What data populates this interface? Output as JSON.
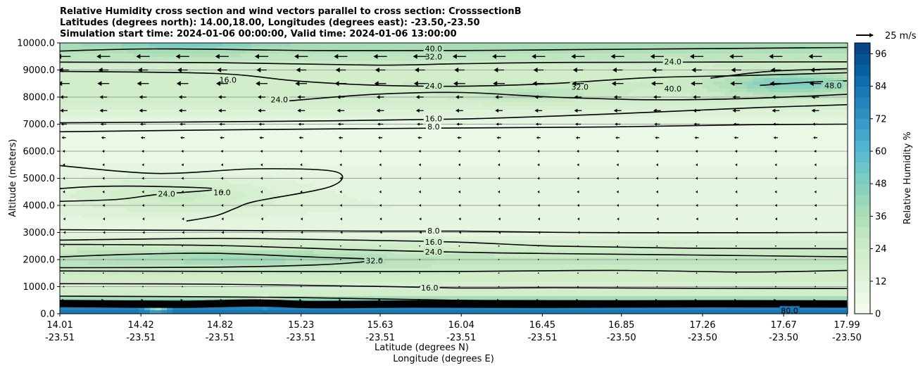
{
  "chart_data": {
    "type": "contour cross-section with filled contours, line contours and wind vectors",
    "title_lines": [
      "Relative Humidity cross section and wind vectors parallel to cross section: CrosssectionB",
      "Latitudes (degrees north): 14.00,18.00, Longitudes (degrees east): -23.50,-23.50",
      "Simulation start time: 2024-01-06 00:00:00, Valid time: 2024-01-06 13:00:00"
    ],
    "ylabel": "Altitude (meters)",
    "xlabel_lat": "Latitude (degrees N)",
    "xlabel_lon": "Longitude (degrees E)",
    "ylim": [
      0,
      10000
    ],
    "yticks": [
      0,
      1000,
      2000,
      3000,
      4000,
      5000,
      6000,
      7000,
      8000,
      9000,
      10000
    ],
    "ytick_labels": [
      "0.0",
      "1000.0",
      "2000.0",
      "3000.0",
      "4000.0",
      "5000.0",
      "6000.0",
      "7000.0",
      "8000.0",
      "9000.0",
      "10000.0"
    ],
    "xlim": [
      14.01,
      17.99
    ],
    "xticks": [
      14.01,
      14.42,
      14.82,
      15.23,
      15.63,
      16.04,
      16.45,
      16.85,
      17.26,
      17.67,
      17.99
    ],
    "xtick_lat_labels": [
      "14.01",
      "14.42",
      "14.82",
      "15.23",
      "15.63",
      "16.04",
      "16.45",
      "16.85",
      "17.26",
      "17.67",
      "17.99"
    ],
    "xtick_lon_labels": [
      "-23.51",
      "-23.51",
      "-23.51",
      "-23.51",
      "-23.51",
      "-23.51",
      "-23.51",
      "-23.50",
      "-23.50",
      "-23.50",
      "-23.50"
    ],
    "grid": "horizontal lines at y ticks",
    "colorbar": {
      "label": "Relative Humidity %",
      "range": [
        0,
        100
      ],
      "ticks": [
        0,
        12,
        24,
        36,
        48,
        60,
        72,
        84,
        96
      ],
      "tick_labels": [
        "0",
        "12",
        "24",
        "36",
        "48",
        "60",
        "72",
        "84",
        "96"
      ],
      "colormap": "GnBu",
      "levels": 25
    },
    "quiver_key": {
      "label": "25 m/s",
      "speed": 25
    },
    "rh_field_profile": [
      {
        "alt": 0,
        "rh": 82
      },
      {
        "alt": 200,
        "rh": 78
      },
      {
        "alt": 400,
        "rh": 62
      },
      {
        "alt": 700,
        "rh": 22
      },
      {
        "alt": 1000,
        "rh": 18
      },
      {
        "alt": 1500,
        "rh": 24
      },
      {
        "alt": 2000,
        "rh": 30
      },
      {
        "alt": 2500,
        "rh": 20
      },
      {
        "alt": 3000,
        "rh": 10
      },
      {
        "alt": 4000,
        "rh": 12
      },
      {
        "alt": 5000,
        "rh": 10
      },
      {
        "alt": 6000,
        "rh": 6
      },
      {
        "alt": 7000,
        "rh": 8
      },
      {
        "alt": 7500,
        "rh": 16
      },
      {
        "alt": 8000,
        "rh": 22
      },
      {
        "alt": 8500,
        "rh": 24
      },
      {
        "alt": 9000,
        "rh": 20
      },
      {
        "alt": 9500,
        "rh": 30
      },
      {
        "alt": 10000,
        "rh": 40
      }
    ],
    "rh_anomalies": [
      {
        "lat": 14.6,
        "alt": 4400,
        "dlat": 0.5,
        "dalt": 600,
        "rh": 14
      },
      {
        "lat": 14.9,
        "alt": 2100,
        "dlat": 0.8,
        "dalt": 350,
        "rh": 12
      },
      {
        "lat": 17.7,
        "alt": 8500,
        "dlat": 0.35,
        "dalt": 450,
        "rh": 26
      },
      {
        "lat": 16.4,
        "alt": 8100,
        "dlat": 0.35,
        "dalt": 300,
        "rh": 10
      },
      {
        "lat": 14.65,
        "alt": 9950,
        "dlat": 0.35,
        "dalt": 300,
        "rh": 12
      },
      {
        "lat": 15.05,
        "alt": 450,
        "dlat": 0.06,
        "dalt": 150,
        "rh": -45
      },
      {
        "lat": 14.5,
        "alt": 200,
        "dlat": 0.05,
        "dalt": 120,
        "rh": -40
      }
    ],
    "contour_lines": [
      {
        "label": "8.0",
        "points": [
          [
            14.01,
            3100
          ],
          [
            15.0,
            3070
          ],
          [
            15.6,
            3050
          ],
          [
            16.04,
            3050
          ],
          [
            16.6,
            3000
          ],
          [
            17.2,
            2990
          ],
          [
            17.99,
            3000
          ]
        ]
      },
      {
        "label": "16.0",
        "points": [
          [
            14.01,
            2720
          ],
          [
            14.8,
            2780
          ],
          [
            15.5,
            2720
          ],
          [
            16.04,
            2640
          ],
          [
            16.5,
            2500
          ],
          [
            17.2,
            2420
          ],
          [
            17.99,
            2400
          ]
        ]
      },
      {
        "label": "24.0",
        "points": [
          [
            14.01,
            2560
          ],
          [
            14.8,
            2520
          ],
          [
            15.5,
            2360
          ],
          [
            16.04,
            2270
          ],
          [
            16.5,
            2220
          ],
          [
            17.2,
            2170
          ],
          [
            17.99,
            2100
          ]
        ]
      },
      {
        "label": "32.0",
        "points": [
          [
            14.01,
            1700
          ],
          [
            14.8,
            1720
          ],
          [
            15.3,
            1800
          ],
          [
            15.55,
            1920
          ],
          [
            15.6,
            2010
          ],
          [
            15.3,
            2090
          ],
          [
            14.8,
            2230
          ],
          [
            14.4,
            2200
          ],
          [
            14.01,
            2100
          ]
        ]
      },
      {
        "label": "24.0",
        "points": [
          [
            14.01,
            1580
          ],
          [
            15.0,
            1560
          ],
          [
            16.04,
            1560
          ],
          [
            16.8,
            1600
          ],
          [
            17.5,
            1540
          ],
          [
            17.99,
            1600
          ]
        ]
      },
      {
        "label": "16.0",
        "points": [
          [
            14.01,
            1110
          ],
          [
            14.8,
            1090
          ],
          [
            15.6,
            1010
          ],
          [
            16.04,
            950
          ],
          [
            16.5,
            960
          ],
          [
            17.2,
            940
          ],
          [
            17.99,
            930
          ]
        ]
      },
      {
        "label": "8.0",
        "points": [
          [
            14.01,
            650
          ],
          [
            14.6,
            630
          ],
          [
            15.2,
            600
          ],
          [
            16.0,
            500
          ],
          [
            16.5,
            480
          ],
          [
            17.99,
            470
          ]
        ]
      },
      {
        "label": "8.0",
        "points": [
          [
            14.01,
            6720
          ],
          [
            15.0,
            6800
          ],
          [
            16.04,
            6860
          ],
          [
            16.8,
            6900
          ],
          [
            17.5,
            6980
          ],
          [
            17.99,
            7000
          ]
        ]
      },
      {
        "label": "16.0",
        "points": [
          [
            14.01,
            7050
          ],
          [
            15.0,
            7100
          ],
          [
            16.04,
            7190
          ],
          [
            16.8,
            7380
          ],
          [
            17.5,
            7600
          ],
          [
            17.99,
            7720
          ]
        ]
      },
      {
        "label": "24.0",
        "points": [
          [
            14.01,
            8950
          ],
          [
            14.8,
            8870
          ],
          [
            15.2,
            8600
          ],
          [
            15.6,
            8440
          ],
          [
            16.04,
            8400
          ],
          [
            16.5,
            8500
          ],
          [
            17.0,
            8720
          ],
          [
            17.5,
            8800
          ],
          [
            17.99,
            8900
          ]
        ]
      },
      {
        "label": "32.0",
        "points": [
          [
            14.01,
            9290
          ],
          [
            14.8,
            9270
          ],
          [
            15.6,
            9180
          ],
          [
            16.04,
            9230
          ],
          [
            16.6,
            9280
          ],
          [
            17.99,
            9300
          ]
        ]
      },
      {
        "label": "40.0",
        "points": [
          [
            14.01,
            9700
          ],
          [
            14.5,
            9780
          ],
          [
            15.3,
            9720
          ],
          [
            16.04,
            9720
          ],
          [
            16.6,
            9750
          ],
          [
            17.99,
            9830
          ]
        ]
      },
      {
        "label": "24.0",
        "points": [
          [
            14.01,
            4150
          ],
          [
            14.3,
            4220
          ],
          [
            14.5,
            4400
          ],
          [
            14.8,
            4600
          ],
          [
            14.5,
            4700
          ],
          [
            14.2,
            4700
          ],
          [
            14.01,
            4620
          ]
        ]
      },
      {
        "label": "16.0",
        "points": [
          [
            14.01,
            5470
          ],
          [
            14.5,
            5180
          ],
          [
            15.0,
            5350
          ],
          [
            15.4,
            5250
          ],
          [
            15.38,
            4700
          ],
          [
            15.0,
            4150
          ],
          [
            14.9,
            3900
          ],
          [
            14.8,
            3620
          ],
          [
            14.65,
            3420
          ]
        ]
      },
      {
        "label": "16.0",
        "points": [
          [
            15.15,
            7850
          ],
          [
            15.6,
            8100
          ],
          [
            16.04,
            8170
          ],
          [
            16.5,
            8000
          ],
          [
            17.0,
            7900
          ],
          [
            17.5,
            7950
          ],
          [
            17.99,
            8100
          ]
        ]
      },
      {
        "label": "40.0",
        "points": [
          [
            17.3,
            8700
          ],
          [
            17.6,
            8950
          ],
          [
            17.99,
            9050
          ]
        ]
      },
      {
        "label": "48.0",
        "points": [
          [
            17.55,
            8430
          ],
          [
            17.8,
            8550
          ],
          [
            17.99,
            8600
          ]
        ]
      }
    ],
    "contour_text_labels": [
      {
        "text": "40.0",
        "lat": 15.9,
        "alt": 9780
      },
      {
        "text": "32.0",
        "lat": 15.9,
        "alt": 9480
      },
      {
        "text": "24.0",
        "lat": 15.9,
        "alt": 8400
      },
      {
        "text": "16.0",
        "lat": 15.9,
        "alt": 7200
      },
      {
        "text": "8.0",
        "lat": 15.9,
        "alt": 6900
      },
      {
        "text": "8.0",
        "lat": 15.9,
        "alt": 3050
      },
      {
        "text": "16.0",
        "lat": 15.9,
        "alt": 2640
      },
      {
        "text": "24.0",
        "lat": 15.9,
        "alt": 2270
      },
      {
        "text": "32.0",
        "lat": 15.6,
        "alt": 1950
      },
      {
        "text": "16.0",
        "lat": 15.88,
        "alt": 950
      },
      {
        "text": "24.0",
        "lat": 14.55,
        "alt": 4420
      },
      {
        "text": "16.0",
        "lat": 14.83,
        "alt": 4470
      },
      {
        "text": "16.0",
        "lat": 14.86,
        "alt": 8620
      },
      {
        "text": "24.0",
        "lat": 15.12,
        "alt": 7900
      },
      {
        "text": "32.0",
        "lat": 16.64,
        "alt": 8370
      },
      {
        "text": "40.0",
        "lat": 17.11,
        "alt": 8300
      },
      {
        "text": "48.0",
        "lat": 17.92,
        "alt": 8420
      },
      {
        "text": "24.0",
        "lat": 17.11,
        "alt": 9300
      },
      {
        "text": "80.0",
        "lat": 17.7,
        "alt": 100
      }
    ],
    "wind_vector_rows": [
      {
        "alt": 9500,
        "u": -16
      },
      {
        "alt": 9000,
        "u": -12
      },
      {
        "alt": 8500,
        "u": -14
      },
      {
        "alt": 8000,
        "u": -9
      },
      {
        "alt": 7500,
        "u": -9
      },
      {
        "alt": 7000,
        "u": -7
      },
      {
        "alt": 6500,
        "u": -5
      },
      {
        "alt": 6000,
        "u": -3
      },
      {
        "alt": 5500,
        "u": -2.5
      },
      {
        "alt": 5000,
        "u": -2.5
      },
      {
        "alt": 4500,
        "u": -2.5
      },
      {
        "alt": 4000,
        "u": -2
      },
      {
        "alt": 3500,
        "u": -1.5
      },
      {
        "alt": 3000,
        "u": -1
      },
      {
        "alt": 2500,
        "u": -0.8
      },
      {
        "alt": 2000,
        "u": -0.5
      },
      {
        "alt": 1500,
        "u": -0.5
      },
      {
        "alt": 1000,
        "u": 0.5
      },
      {
        "alt": 500,
        "u": 1
      }
    ],
    "wind_vector_lat_spacing": 0.2
  }
}
